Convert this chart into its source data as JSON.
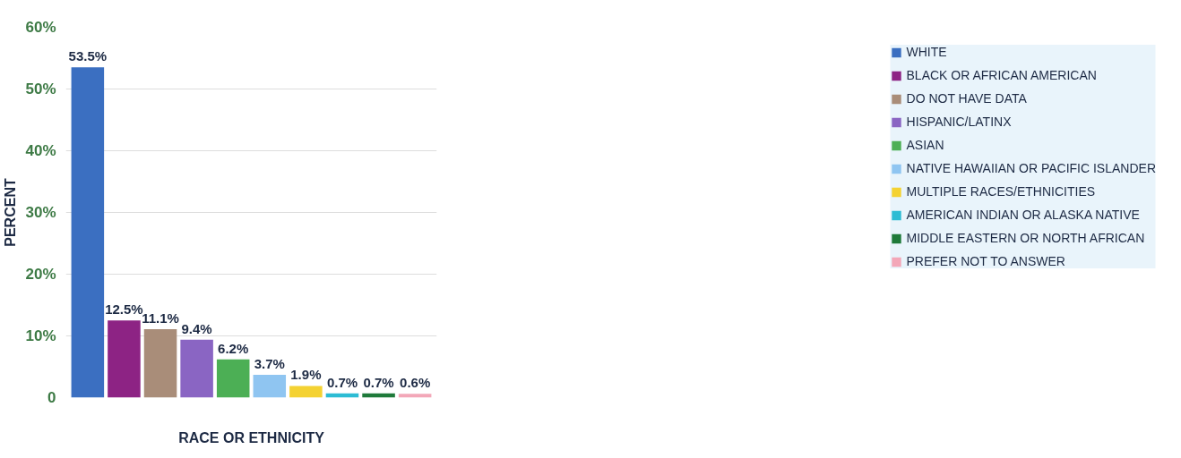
{
  "chart_data": {
    "type": "bar",
    "xlabel": "RACE OR ETHNICITY",
    "ylabel": "PERCENT",
    "categories": [
      null,
      null,
      null,
      null,
      null,
      null,
      null,
      null,
      null,
      null
    ],
    "series": [
      {
        "name": "WHITE",
        "color": "#3b6fc1",
        "values": [
          53.5,
          null,
          null,
          null,
          null,
          null,
          null,
          null,
          null,
          null
        ],
        "value_labels": [
          "53.5%",
          null,
          null,
          null,
          null,
          null,
          null,
          null,
          null,
          null
        ]
      },
      {
        "name": "BLACK OR AFRICAN AMERICAN",
        "color": "#8d2384",
        "values": [
          null,
          12.5,
          null,
          null,
          null,
          null,
          null,
          null,
          null,
          null
        ],
        "value_labels": [
          null,
          "12.5%",
          null,
          null,
          null,
          null,
          null,
          null,
          null,
          null
        ]
      },
      {
        "name": "DO NOT HAVE DATA",
        "color": "#a98d79",
        "values": [
          null,
          null,
          11.1,
          null,
          null,
          null,
          null,
          null,
          null,
          null
        ],
        "value_labels": [
          null,
          null,
          "11.1%",
          null,
          null,
          null,
          null,
          null,
          null,
          null
        ]
      },
      {
        "name": "HISPANIC/LATINX",
        "color": "#8a65c3",
        "values": [
          null,
          null,
          null,
          9.4,
          null,
          null,
          null,
          null,
          null,
          null
        ],
        "value_labels": [
          null,
          null,
          null,
          "9.4%",
          null,
          null,
          null,
          null,
          null,
          null
        ]
      },
      {
        "name": "ASIAN",
        "color": "#4caf55",
        "values": [
          null,
          null,
          null,
          null,
          6.2,
          null,
          null,
          null,
          null,
          null
        ],
        "value_labels": [
          null,
          null,
          null,
          null,
          "6.2%",
          null,
          null,
          null,
          null,
          null
        ]
      },
      {
        "name": "NATIVE HAWAIIAN OR PACIFIC ISLANDER",
        "color": "#8fc5f1",
        "values": [
          null,
          null,
          null,
          null,
          null,
          3.7,
          null,
          null,
          null,
          null
        ],
        "value_labels": [
          null,
          null,
          null,
          null,
          null,
          "3.7%",
          null,
          null,
          null,
          null
        ]
      },
      {
        "name": "MULTIPLE RACES/ETHNICITIES",
        "color": "#f4d232",
        "values": [
          null,
          null,
          null,
          null,
          null,
          null,
          1.9,
          null,
          null,
          null
        ],
        "value_labels": [
          null,
          null,
          null,
          null,
          null,
          null,
          "1.9%",
          null,
          null,
          null
        ]
      },
      {
        "name": "AMERICAN INDIAN OR ALASKA NATIVE",
        "color": "#2cbcd4",
        "values": [
          null,
          null,
          null,
          null,
          null,
          null,
          null,
          0.7,
          null,
          null
        ],
        "value_labels": [
          null,
          null,
          null,
          null,
          null,
          null,
          null,
          "0.7%",
          null,
          null
        ]
      },
      {
        "name": "MIDDLE EASTERN OR NORTH AFRICAN",
        "color": "#1f7a3a",
        "values": [
          null,
          null,
          null,
          null,
          null,
          null,
          null,
          null,
          0.7,
          null
        ],
        "value_labels": [
          null,
          null,
          null,
          null,
          null,
          null,
          null,
          null,
          "0.7%",
          null
        ]
      },
      {
        "name": "PREFER NOT TO ANSWER",
        "color": "#f3a7b8",
        "values": [
          null,
          null,
          null,
          null,
          null,
          null,
          null,
          null,
          null,
          0.6
        ],
        "value_labels": [
          null,
          null,
          null,
          null,
          null,
          null,
          null,
          null,
          null,
          "0.6%"
        ]
      }
    ],
    "ylim": [
      0,
      60
    ],
    "yticks": [
      0,
      {
        "value": 10,
        "label": "10%"
      },
      {
        "value": 20,
        "label": "20%"
      },
      {
        "value": 30,
        "label": "30%"
      },
      {
        "value": 40,
        "label": "40%"
      },
      {
        "value": 50,
        "label": "50%"
      },
      {
        "value": 60,
        "label": "60%"
      }
    ],
    "grid": "y",
    "legend": "right",
    "tick_labels": "y"
  }
}
